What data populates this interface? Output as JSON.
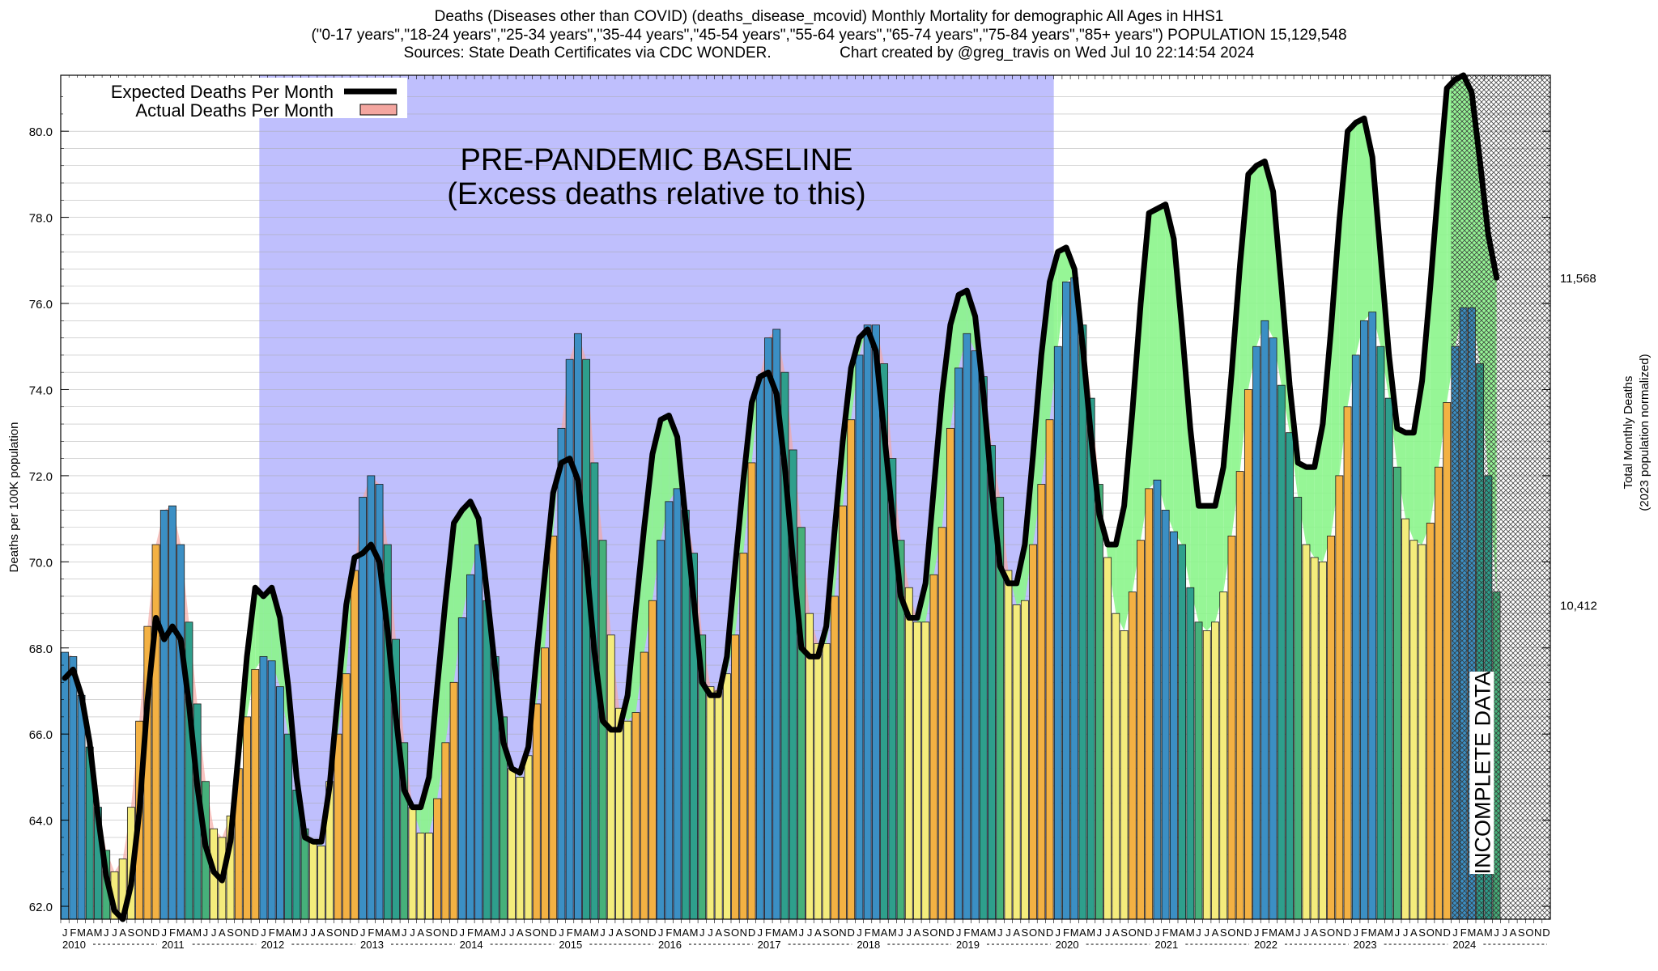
{
  "header": {
    "line1": "Deaths (Diseases other than COVID) (deaths_disease_mcovid) Monthly Mortality for demographic All Ages in HHS1",
    "line2": "(\"0-17 years\",\"18-24 years\",\"25-34 years\",\"35-44 years\",\"45-54 years\",\"55-64 years\",\"65-74 years\",\"75-84 years\",\"85+ years\") POPULATION 15,129,548",
    "line3": "Sources: State Death Certificates via CDC WONDER.                Chart created by @greg_travis on Wed Jul 10 22:14:54 2024"
  },
  "chart_data": {
    "type": "bar",
    "ylabel": "Deaths per 100K population",
    "y2label_line1": "Total Monthly Deaths",
    "y2label_line2": "(2023 population normalized)",
    "ylim": [
      61.7,
      81.3
    ],
    "yticks": [
      62.0,
      64.0,
      66.0,
      68.0,
      70.0,
      72.0,
      74.0,
      76.0,
      78.0,
      80.0
    ],
    "ytick_labels": [
      "62.0",
      "64.0",
      "66.0",
      "68.0",
      "70.0",
      "72.0",
      "74.0",
      "76.0",
      "78.0",
      "80.0"
    ],
    "y2ticks": [
      {
        "value": 69.0,
        "label": "10,412"
      },
      {
        "value": 76.6,
        "label": "11,568"
      }
    ],
    "years": [
      "2010",
      "2011",
      "2012",
      "2013",
      "2014",
      "2015",
      "2016",
      "2017",
      "2018",
      "2019",
      "2020",
      "2021",
      "2022",
      "2023",
      "2024"
    ],
    "month_letters": [
      "J",
      "F",
      "M",
      "A",
      "M",
      "J",
      "J",
      "A",
      "S",
      "O",
      "N",
      "D"
    ],
    "baseline_region": {
      "start_index": 24,
      "end_index": 119,
      "label_line1": "PRE-PANDEMIC BASELINE",
      "label_line2": "(Excess deaths relative to this)"
    },
    "incomplete_region": {
      "start_index": 168,
      "label": "INCOMPLETE DATA"
    },
    "legend": [
      {
        "label": "Expected Deaths Per Month",
        "color": "#000000",
        "kind": "line"
      },
      {
        "label": "Actual Deaths Per Month",
        "color": "#f4a6a0",
        "kind": "box"
      }
    ],
    "legend_position": "top-left",
    "actual": [
      67.9,
      67.8,
      66.9,
      65.7,
      64.3,
      63.3,
      62.8,
      63.1,
      64.3,
      66.3,
      68.5,
      70.4,
      71.2,
      71.3,
      70.4,
      68.6,
      66.7,
      64.9,
      63.8,
      63.6,
      64.1,
      65.2,
      66.4,
      67.5,
      67.8,
      67.7,
      67.1,
      66.0,
      64.7,
      63.8,
      63.5,
      63.4,
      64.9,
      66.0,
      67.4,
      69.8,
      71.5,
      72.0,
      71.8,
      70.4,
      68.2,
      65.8,
      64.3,
      63.7,
      63.7,
      64.5,
      65.8,
      67.2,
      68.7,
      69.7,
      70.4,
      69.1,
      67.8,
      66.4,
      65.2,
      65.0,
      65.5,
      66.7,
      68.0,
      70.6,
      73.1,
      74.7,
      75.3,
      74.7,
      72.3,
      70.5,
      68.3,
      66.6,
      66.3,
      66.5,
      67.9,
      69.1,
      70.5,
      71.4,
      71.7,
      71.2,
      70.2,
      68.3,
      67.1,
      67.0,
      67.4,
      68.3,
      70.2,
      72.3,
      74.3,
      75.2,
      75.4,
      74.4,
      72.6,
      70.8,
      68.8,
      68.1,
      68.1,
      69.2,
      71.3,
      73.3,
      74.8,
      75.5,
      75.5,
      74.6,
      72.4,
      70.5,
      69.4,
      68.6,
      68.6,
      69.7,
      70.8,
      73.1,
      74.5,
      75.3,
      74.9,
      74.3,
      72.7,
      71.5,
      69.8,
      69.0,
      69.1,
      70.4,
      71.8,
      73.3,
      75.0,
      76.5,
      76.6,
      75.5,
      73.8,
      71.8,
      70.1,
      68.8,
      68.4,
      69.3,
      70.5,
      71.7,
      71.9,
      71.2,
      70.7,
      70.4,
      69.4,
      68.6,
      68.4,
      68.6,
      69.3,
      70.6,
      72.1,
      74.0,
      75.0,
      75.6,
      75.2,
      74.1,
      73.0,
      71.5,
      70.4,
      70.1,
      70.0,
      70.6,
      72.0,
      73.6,
      74.8,
      75.6,
      75.8,
      75.0,
      73.8,
      72.2,
      71.0,
      70.5,
      70.4,
      70.9,
      72.2,
      73.7,
      75.0,
      75.9,
      75.9,
      74.6,
      72.0,
      69.3
    ],
    "expected": [
      67.3,
      67.5,
      66.9,
      65.8,
      64.1,
      62.7,
      61.9,
      61.7,
      62.5,
      64.2,
      66.8,
      68.7,
      68.2,
      68.5,
      68.2,
      66.7,
      64.8,
      63.4,
      62.8,
      62.6,
      63.5,
      65.6,
      67.8,
      69.4,
      69.2,
      69.4,
      68.7,
      67.1,
      65.0,
      63.6,
      63.5,
      63.5,
      64.8,
      66.9,
      69.0,
      70.1,
      70.2,
      70.4,
      70.0,
      68.4,
      66.4,
      64.7,
      64.3,
      64.3,
      65.0,
      67.1,
      69.1,
      70.9,
      71.2,
      71.4,
      71.0,
      69.3,
      67.5,
      65.8,
      65.2,
      65.1,
      65.7,
      67.8,
      69.7,
      71.6,
      72.3,
      72.4,
      71.9,
      70.0,
      67.9,
      66.3,
      66.1,
      66.1,
      66.9,
      68.9,
      70.8,
      72.5,
      73.3,
      73.4,
      72.9,
      71.0,
      69.1,
      67.2,
      66.9,
      66.9,
      67.8,
      69.9,
      71.9,
      73.7,
      74.3,
      74.4,
      73.9,
      72.2,
      70.0,
      68.0,
      67.8,
      67.8,
      68.5,
      70.7,
      72.8,
      74.5,
      75.2,
      75.4,
      74.9,
      73.0,
      71.1,
      69.2,
      68.7,
      68.7,
      69.5,
      71.7,
      73.9,
      75.5,
      76.2,
      76.3,
      75.7,
      73.9,
      71.7,
      69.9,
      69.5,
      69.5,
      70.4,
      72.5,
      74.8,
      76.5,
      77.2,
      77.3,
      76.8,
      75.0,
      72.9,
      71.1,
      70.4,
      70.4,
      71.3,
      73.5,
      76.0,
      78.1,
      78.2,
      78.3,
      77.5,
      75.4,
      73.1,
      71.3,
      71.3,
      71.3,
      72.2,
      74.4,
      76.9,
      79.0,
      79.2,
      79.3,
      78.6,
      76.4,
      74.1,
      72.3,
      72.2,
      72.2,
      73.2,
      75.4,
      77.9,
      80.0,
      80.2,
      80.3,
      79.4,
      77.1,
      74.8,
      73.1,
      73.0,
      73.0,
      74.2,
      76.4,
      78.8,
      81.0,
      81.2,
      81.3,
      80.9,
      79.3,
      77.6,
      76.6
    ]
  }
}
